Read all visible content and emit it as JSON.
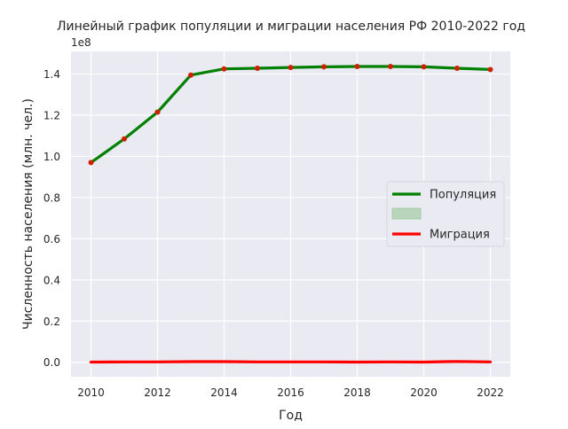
{
  "chart_data": {
    "type": "line",
    "title": "Линейный график популяции и миграции населения РФ 2010-2022 год",
    "xlabel": "Год",
    "ylabel": "Численность населения (млн. чел.)",
    "offset_label": "1e8",
    "xlim": [
      2009.4,
      2022.6
    ],
    "ylim": [
      -0.07,
      1.51
    ],
    "x_ticks": [
      2010,
      2012,
      2014,
      2016,
      2018,
      2020,
      2022
    ],
    "y_ticks": [
      0.0,
      0.2,
      0.4,
      0.6,
      0.8,
      1.0,
      1.2,
      1.4
    ],
    "y_tick_labels": [
      "0.0",
      "0.2",
      "0.4",
      "0.6",
      "0.8",
      "1.0",
      "1.2",
      "1.4"
    ],
    "grid": true,
    "legend_position": "center-right",
    "x": [
      2010,
      2011,
      2012,
      2013,
      2014,
      2015,
      2016,
      2017,
      2018,
      2019,
      2020,
      2021,
      2022
    ],
    "series": [
      {
        "name": "Популяция",
        "color": "#008000",
        "values": [
          0.97,
          1.085,
          1.215,
          1.395,
          1.425,
          1.428,
          1.432,
          1.435,
          1.437,
          1.437,
          1.435,
          1.428,
          1.422
        ]
      },
      {
        "name": "Миграция",
        "color": "#ff0000",
        "values": [
          0.001,
          0.002,
          0.002,
          0.003,
          0.003,
          0.002,
          0.002,
          0.002,
          0.001,
          0.002,
          0.001,
          0.004,
          0.002
        ]
      }
    ],
    "marker_color": "#cc2200",
    "band_color": "#90c490",
    "legend_items": [
      {
        "label": "Популяция",
        "kind": "line",
        "color": "#008000"
      },
      {
        "label": "",
        "kind": "patch",
        "color": "#90c490"
      },
      {
        "label": "Миграция",
        "kind": "line",
        "color": "#ff0000"
      }
    ]
  }
}
